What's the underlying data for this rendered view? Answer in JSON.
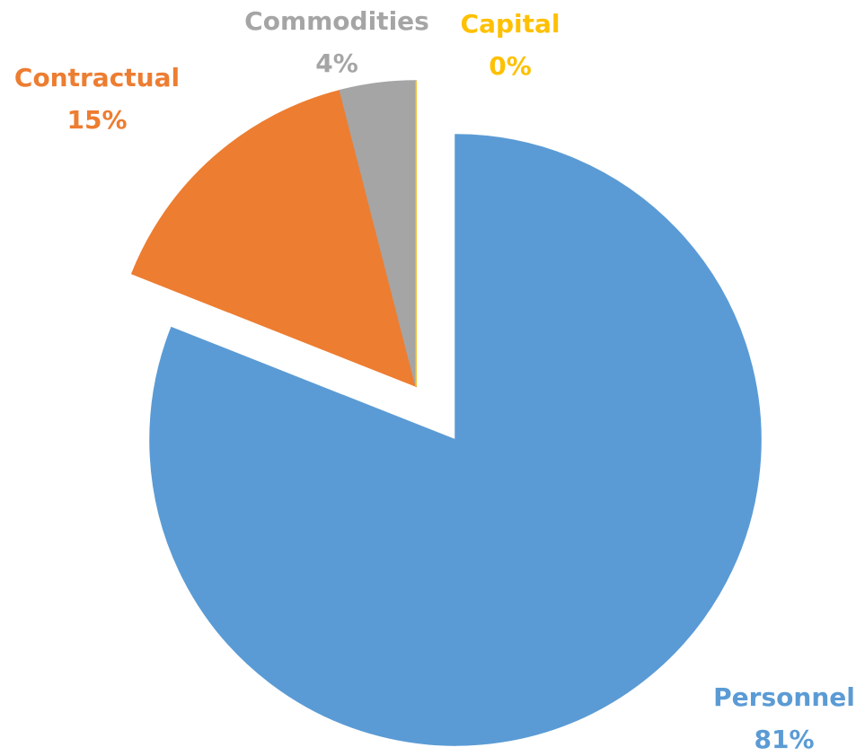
{
  "chart_data": {
    "type": "pie",
    "categories": [
      "Personnel",
      "Contractual",
      "Commodities",
      "Capital"
    ],
    "values": [
      81,
      15,
      4,
      0
    ],
    "value_labels": [
      "81%",
      "15%",
      "4%",
      "0%"
    ],
    "colors": [
      "#5b9bd5",
      "#ed7d31",
      "#a5a5a5",
      "#ffc000"
    ]
  }
}
